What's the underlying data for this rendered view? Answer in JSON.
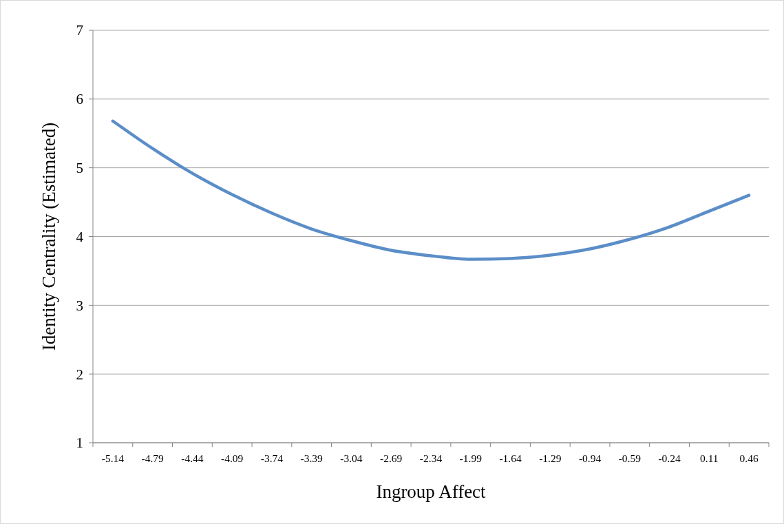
{
  "chart_data": {
    "type": "line",
    "xlabel": "Ingroup Affect",
    "ylabel": "Identity Centrality (Estimated)",
    "categories": [
      "-5.14",
      "-4.79",
      "-4.44",
      "-4.09",
      "-3.74",
      "-3.39",
      "-3.04",
      "-2.69",
      "-2.34",
      "-1.99",
      "-1.64",
      "-1.29",
      "-0.94",
      "-0.59",
      "-0.24",
      "0.11",
      "0.46"
    ],
    "series": [
      {
        "color": "#5b8ec8",
        "values": [
          5.68,
          5.28,
          4.92,
          4.61,
          4.34,
          4.11,
          3.94,
          3.8,
          3.72,
          3.67,
          3.68,
          3.73,
          3.82,
          3.96,
          4.14,
          4.37,
          4.6
        ]
      }
    ],
    "ylim": [
      1,
      7
    ],
    "yticks": [
      1,
      2,
      3,
      4,
      5,
      6,
      7
    ],
    "grid": "y",
    "marker": "none",
    "line_style": "solid"
  }
}
